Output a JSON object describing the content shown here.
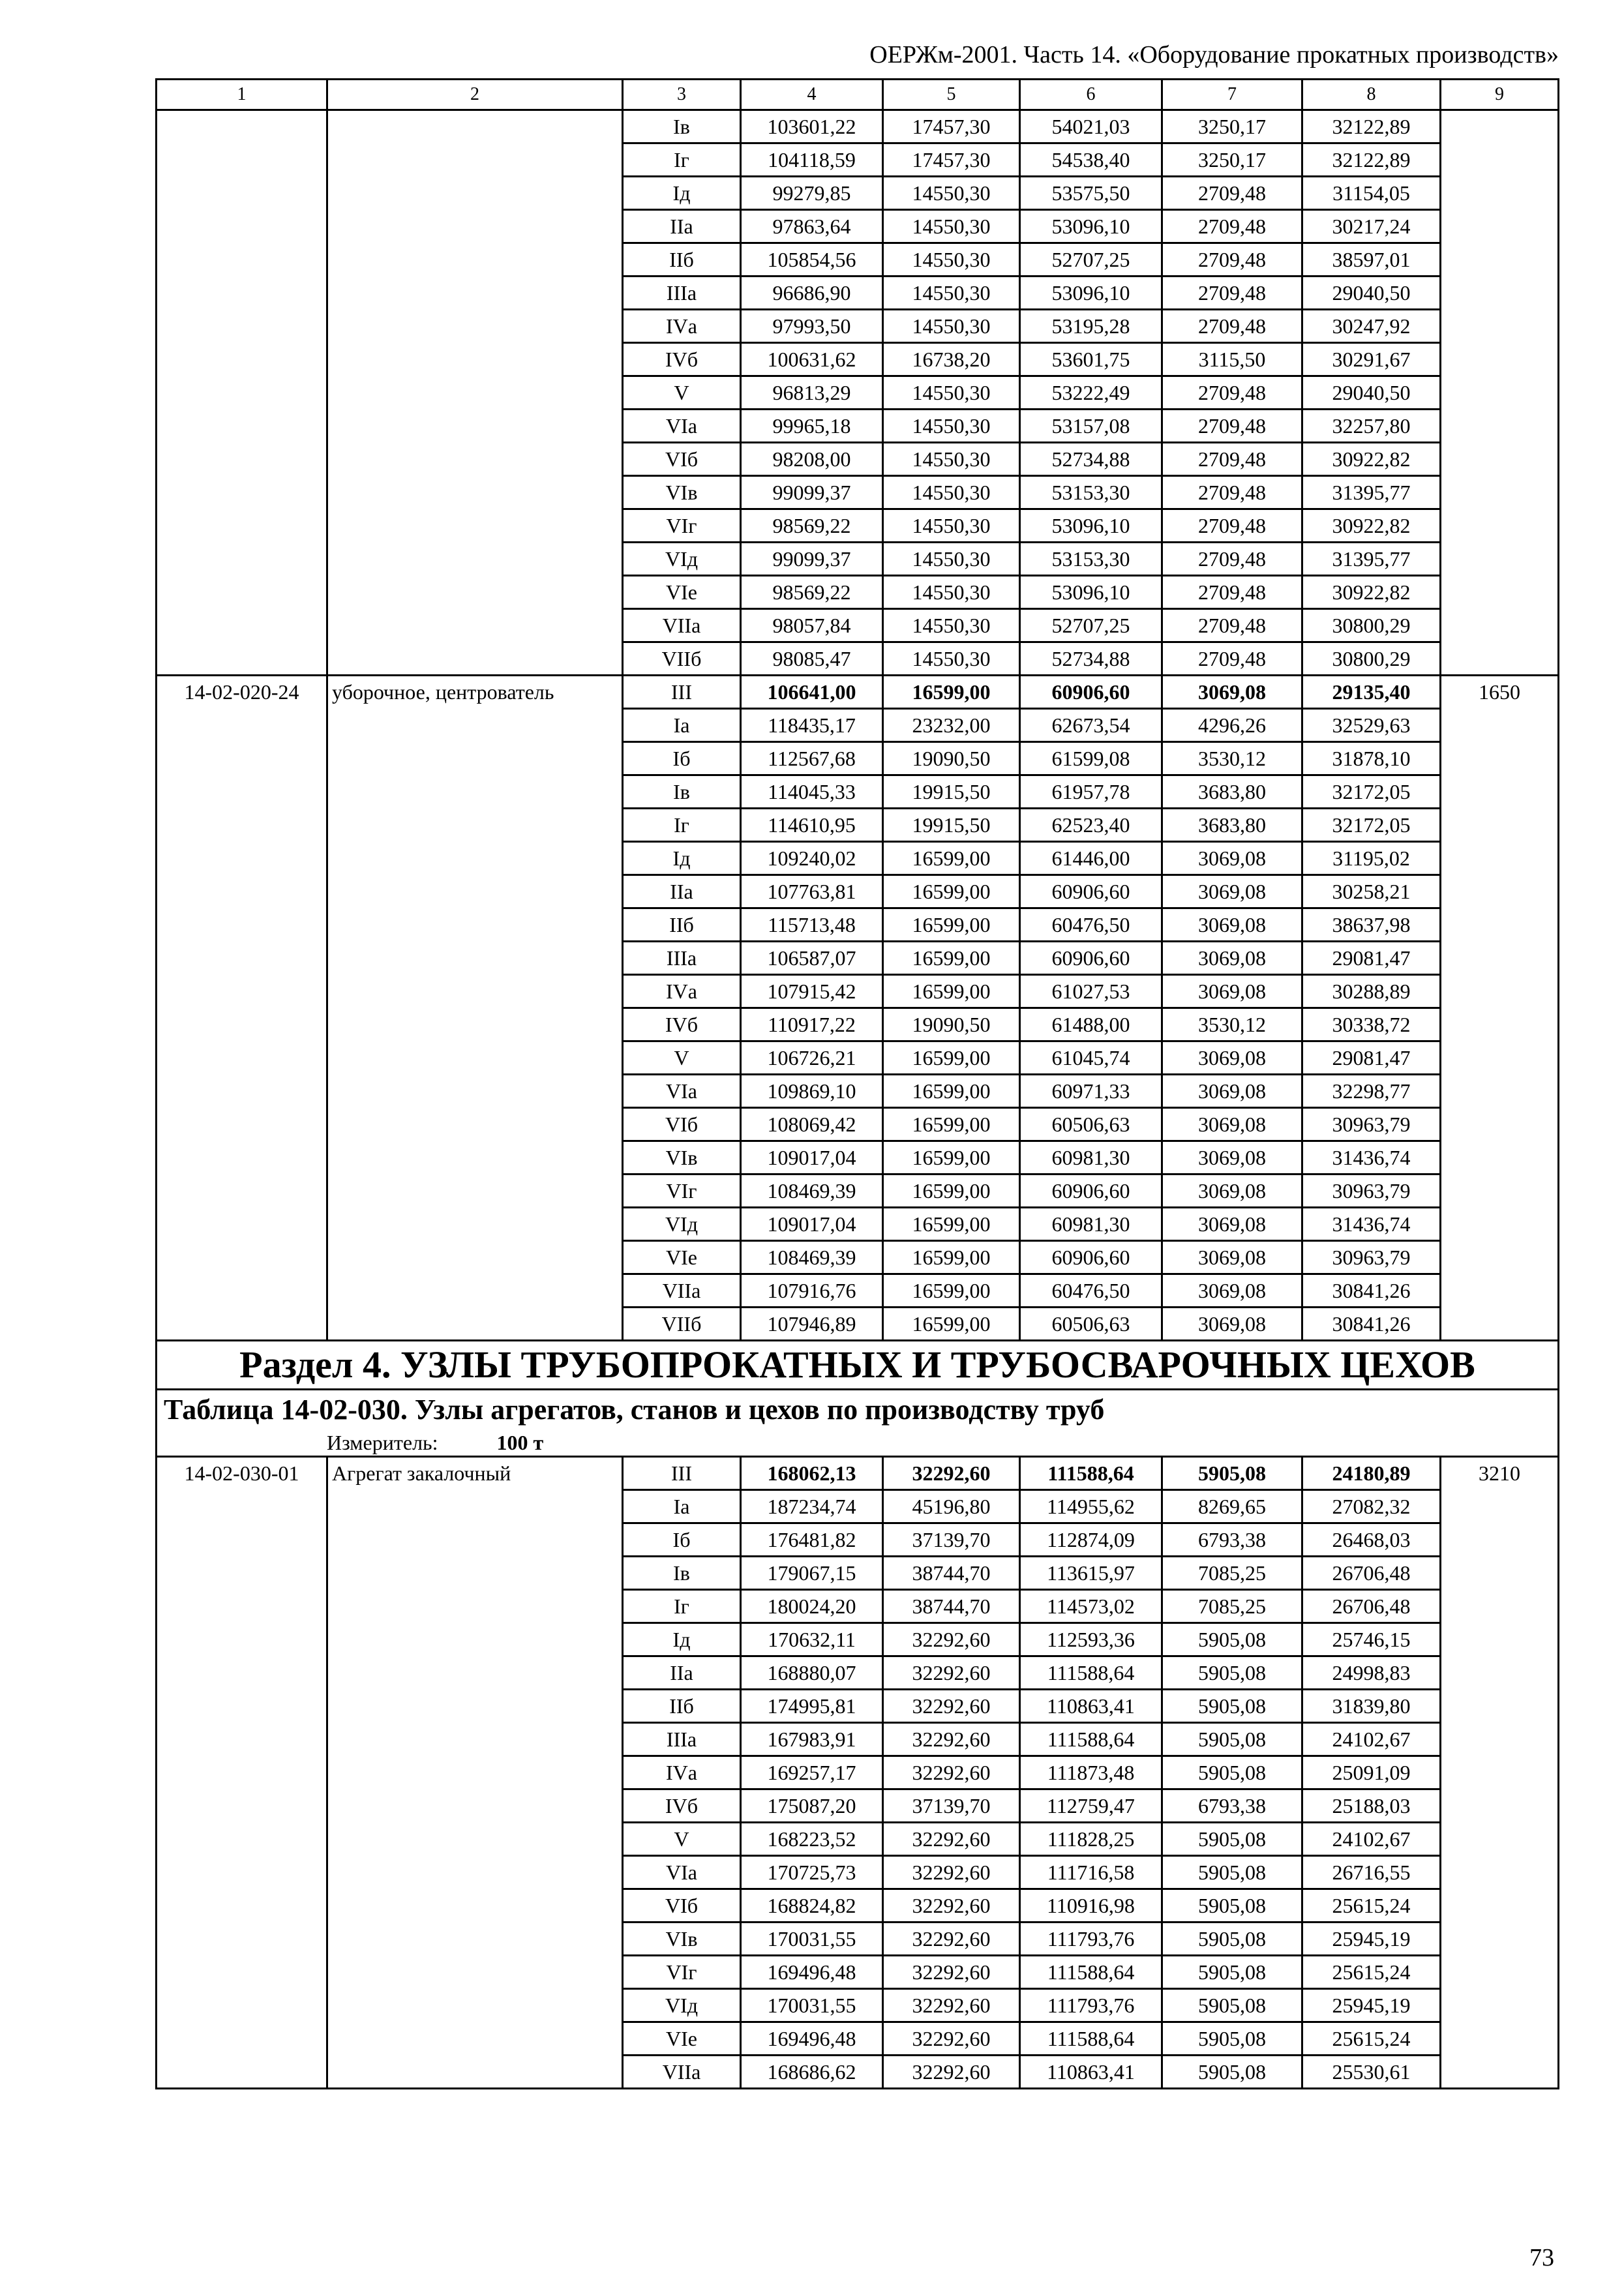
{
  "header": {
    "running_title": "ОЕРЖм-2001. Часть 14. «Оборудование прокатных производств»"
  },
  "column_numbers": [
    "1",
    "2",
    "3",
    "4",
    "5",
    "6",
    "7",
    "8",
    "9"
  ],
  "groups": [
    {
      "code": "",
      "name": "",
      "col9": "",
      "rows": [
        [
          "Iв",
          "103601,22",
          "17457,30",
          "54021,03",
          "3250,17",
          "32122,89"
        ],
        [
          "Iг",
          "104118,59",
          "17457,30",
          "54538,40",
          "3250,17",
          "32122,89"
        ],
        [
          "Iд",
          "99279,85",
          "14550,30",
          "53575,50",
          "2709,48",
          "31154,05"
        ],
        [
          "IIа",
          "97863,64",
          "14550,30",
          "53096,10",
          "2709,48",
          "30217,24"
        ],
        [
          "IIб",
          "105854,56",
          "14550,30",
          "52707,25",
          "2709,48",
          "38597,01"
        ],
        [
          "IIIа",
          "96686,90",
          "14550,30",
          "53096,10",
          "2709,48",
          "29040,50"
        ],
        [
          "IVа",
          "97993,50",
          "14550,30",
          "53195,28",
          "2709,48",
          "30247,92"
        ],
        [
          "IVб",
          "100631,62",
          "16738,20",
          "53601,75",
          "3115,50",
          "30291,67"
        ],
        [
          "V",
          "96813,29",
          "14550,30",
          "53222,49",
          "2709,48",
          "29040,50"
        ],
        [
          "VIа",
          "99965,18",
          "14550,30",
          "53157,08",
          "2709,48",
          "32257,80"
        ],
        [
          "VIб",
          "98208,00",
          "14550,30",
          "52734,88",
          "2709,48",
          "30922,82"
        ],
        [
          "VIв",
          "99099,37",
          "14550,30",
          "53153,30",
          "2709,48",
          "31395,77"
        ],
        [
          "VIг",
          "98569,22",
          "14550,30",
          "53096,10",
          "2709,48",
          "30922,82"
        ],
        [
          "VIд",
          "99099,37",
          "14550,30",
          "53153,30",
          "2709,48",
          "31395,77"
        ],
        [
          "VIе",
          "98569,22",
          "14550,30",
          "53096,10",
          "2709,48",
          "30922,82"
        ],
        [
          "VIIа",
          "98057,84",
          "14550,30",
          "52707,25",
          "2709,48",
          "30800,29"
        ],
        [
          "VIIб",
          "98085,47",
          "14550,30",
          "52734,88",
          "2709,48",
          "30800,29"
        ]
      ]
    },
    {
      "code": "14-02-020-24",
      "name": "уборочное, центрователь",
      "col9": "1650",
      "first_bold": true,
      "rows": [
        [
          "III",
          "106641,00",
          "16599,00",
          "60906,60",
          "3069,08",
          "29135,40"
        ],
        [
          "Iа",
          "118435,17",
          "23232,00",
          "62673,54",
          "4296,26",
          "32529,63"
        ],
        [
          "Iб",
          "112567,68",
          "19090,50",
          "61599,08",
          "3530,12",
          "31878,10"
        ],
        [
          "Iв",
          "114045,33",
          "19915,50",
          "61957,78",
          "3683,80",
          "32172,05"
        ],
        [
          "Iг",
          "114610,95",
          "19915,50",
          "62523,40",
          "3683,80",
          "32172,05"
        ],
        [
          "Iд",
          "109240,02",
          "16599,00",
          "61446,00",
          "3069,08",
          "31195,02"
        ],
        [
          "IIа",
          "107763,81",
          "16599,00",
          "60906,60",
          "3069,08",
          "30258,21"
        ],
        [
          "IIб",
          "115713,48",
          "16599,00",
          "60476,50",
          "3069,08",
          "38637,98"
        ],
        [
          "IIIа",
          "106587,07",
          "16599,00",
          "60906,60",
          "3069,08",
          "29081,47"
        ],
        [
          "IVа",
          "107915,42",
          "16599,00",
          "61027,53",
          "3069,08",
          "30288,89"
        ],
        [
          "IVб",
          "110917,22",
          "19090,50",
          "61488,00",
          "3530,12",
          "30338,72"
        ],
        [
          "V",
          "106726,21",
          "16599,00",
          "61045,74",
          "3069,08",
          "29081,47"
        ],
        [
          "VIа",
          "109869,10",
          "16599,00",
          "60971,33",
          "3069,08",
          "32298,77"
        ],
        [
          "VIб",
          "108069,42",
          "16599,00",
          "60506,63",
          "3069,08",
          "30963,79"
        ],
        [
          "VIв",
          "109017,04",
          "16599,00",
          "60981,30",
          "3069,08",
          "31436,74"
        ],
        [
          "VIг",
          "108469,39",
          "16599,00",
          "60906,60",
          "3069,08",
          "30963,79"
        ],
        [
          "VIд",
          "109017,04",
          "16599,00",
          "60981,30",
          "3069,08",
          "31436,74"
        ],
        [
          "VIе",
          "108469,39",
          "16599,00",
          "60906,60",
          "3069,08",
          "30963,79"
        ],
        [
          "VIIа",
          "107916,76",
          "16599,00",
          "60476,50",
          "3069,08",
          "30841,26"
        ],
        [
          "VIIб",
          "107946,89",
          "16599,00",
          "60506,63",
          "3069,08",
          "30841,26"
        ]
      ]
    }
  ],
  "section": {
    "title": "Раздел 4. УЗЛЫ ТРУБОПРОКАТНЫХ И ТРУБОСВАРОЧНЫХ ЦЕХОВ",
    "table_title": "Таблица 14-02-030. Узлы агрегатов, станов и цехов по производству труб",
    "unit_label": "Измеритель:",
    "unit_value": "100 т"
  },
  "groups2": [
    {
      "code": "14-02-030-01",
      "name": "Агрегат закалочный",
      "col9": "3210",
      "first_bold": true,
      "rows": [
        [
          "III",
          "168062,13",
          "32292,60",
          "111588,64",
          "5905,08",
          "24180,89"
        ],
        [
          "Iа",
          "187234,74",
          "45196,80",
          "114955,62",
          "8269,65",
          "27082,32"
        ],
        [
          "Iб",
          "176481,82",
          "37139,70",
          "112874,09",
          "6793,38",
          "26468,03"
        ],
        [
          "Iв",
          "179067,15",
          "38744,70",
          "113615,97",
          "7085,25",
          "26706,48"
        ],
        [
          "Iг",
          "180024,20",
          "38744,70",
          "114573,02",
          "7085,25",
          "26706,48"
        ],
        [
          "Iд",
          "170632,11",
          "32292,60",
          "112593,36",
          "5905,08",
          "25746,15"
        ],
        [
          "IIа",
          "168880,07",
          "32292,60",
          "111588,64",
          "5905,08",
          "24998,83"
        ],
        [
          "IIб",
          "174995,81",
          "32292,60",
          "110863,41",
          "5905,08",
          "31839,80"
        ],
        [
          "IIIа",
          "167983,91",
          "32292,60",
          "111588,64",
          "5905,08",
          "24102,67"
        ],
        [
          "IVа",
          "169257,17",
          "32292,60",
          "111873,48",
          "5905,08",
          "25091,09"
        ],
        [
          "IVб",
          "175087,20",
          "37139,70",
          "112759,47",
          "6793,38",
          "25188,03"
        ],
        [
          "V",
          "168223,52",
          "32292,60",
          "111828,25",
          "5905,08",
          "24102,67"
        ],
        [
          "VIа",
          "170725,73",
          "32292,60",
          "111716,58",
          "5905,08",
          "26716,55"
        ],
        [
          "VIб",
          "168824,82",
          "32292,60",
          "110916,98",
          "5905,08",
          "25615,24"
        ],
        [
          "VIв",
          "170031,55",
          "32292,60",
          "111793,76",
          "5905,08",
          "25945,19"
        ],
        [
          "VIг",
          "169496,48",
          "32292,60",
          "111588,64",
          "5905,08",
          "25615,24"
        ],
        [
          "VIд",
          "170031,55",
          "32292,60",
          "111793,76",
          "5905,08",
          "25945,19"
        ],
        [
          "VIе",
          "169496,48",
          "32292,60",
          "111588,64",
          "5905,08",
          "25615,24"
        ],
        [
          "VIIа",
          "168686,62",
          "32292,60",
          "110863,41",
          "5905,08",
          "25530,61"
        ]
      ]
    }
  ],
  "footer": {
    "page_number": "73"
  }
}
